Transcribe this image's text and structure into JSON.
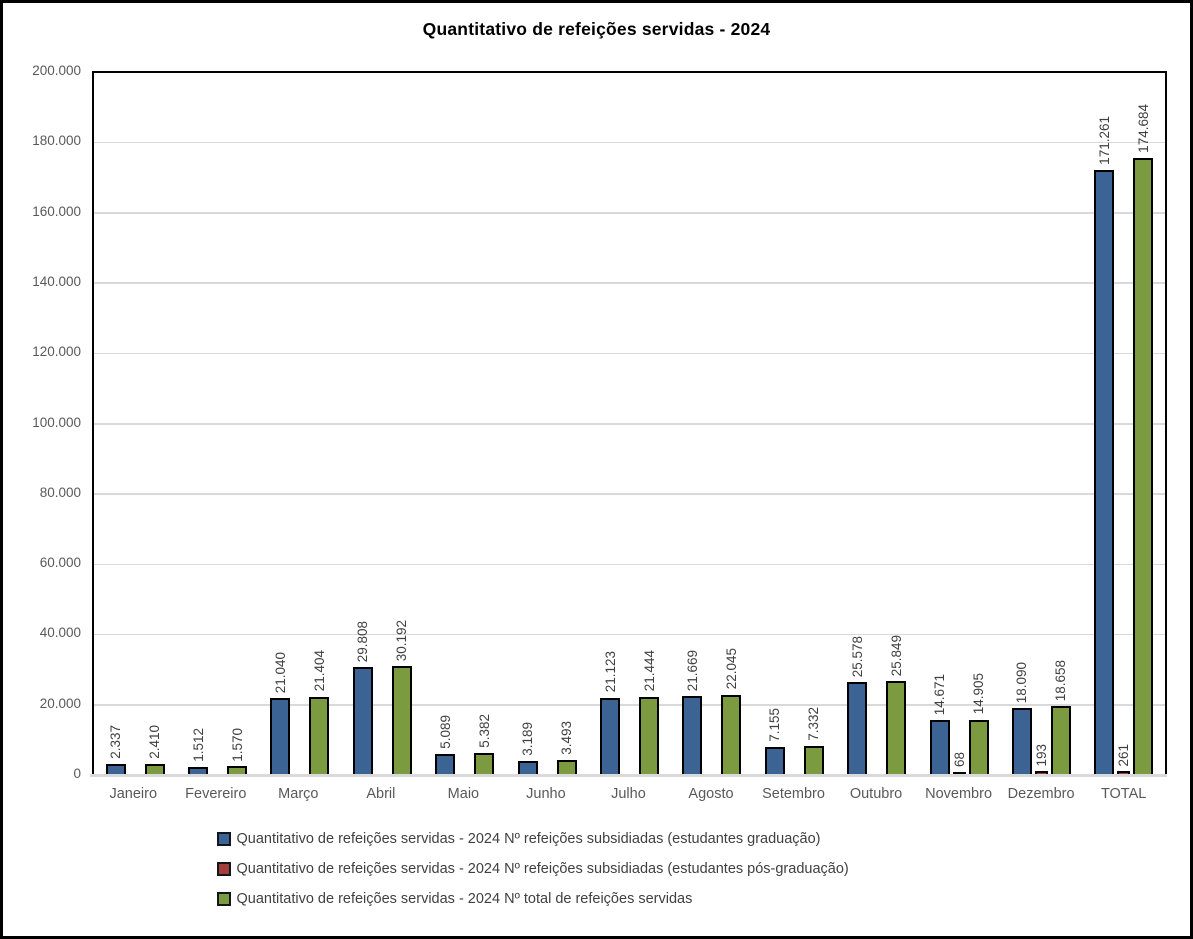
{
  "title": "Quantitativo de refeições servidas - 2024",
  "chart_data": {
    "type": "bar",
    "title": "Quantitativo de refeições servidas - 2024",
    "categories": [
      "Janeiro",
      "Fevereiro",
      "Março",
      "Abril",
      "Maio",
      "Junho",
      "Julho",
      "Agosto",
      "Setembro",
      "Outubro",
      "Novembro",
      "Dezembro",
      "TOTAL"
    ],
    "series": [
      {
        "name": "Quantitativo de refeições servidas - 2024 Nº refeições subsidiadas (estudantes graduação)",
        "color": "#3b6394",
        "values": [
          2337,
          1512,
          21040,
          29808,
          5089,
          3189,
          21123,
          21669,
          7155,
          25578,
          14671,
          18090,
          171261
        ]
      },
      {
        "name": "Quantitativo de refeições servidas - 2024 Nº refeições subsidiadas (estudantes pós-graduação)",
        "color": "#a33e3b",
        "values": [
          0,
          0,
          0,
          0,
          0,
          0,
          0,
          0,
          0,
          0,
          68,
          193,
          261
        ]
      },
      {
        "name": "Quantitativo de refeições servidas - 2024 Nº total de refeições servidas",
        "color": "#7c9b41",
        "values": [
          2410,
          1570,
          21404,
          30192,
          5382,
          3493,
          21444,
          22045,
          7332,
          25849,
          14905,
          18658,
          174684
        ]
      }
    ],
    "ylim": [
      0,
      200000
    ],
    "ytick_step": 20000,
    "ytick_labels": [
      "0",
      "20.000",
      "40.000",
      "60.000",
      "80.000",
      "100.000",
      "120.000",
      "140.000",
      "160.000",
      "180.000",
      "200.000"
    ],
    "xlabel": "",
    "ylabel": "",
    "grid": true,
    "legend_position": "bottom",
    "data_labels_rotated": true,
    "thousands_separator": "."
  },
  "style": {
    "grid_color": "#d9d9d9",
    "axis_text_color": "#595959",
    "data_label_color": "#404040",
    "bar_border_color": "#000000",
    "frame_border_color": "#000000"
  }
}
